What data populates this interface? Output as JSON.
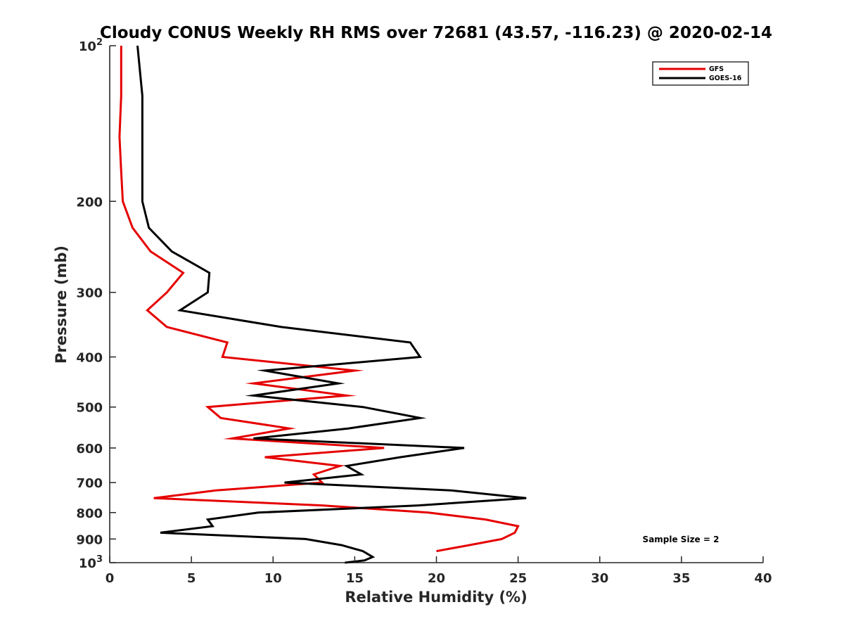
{
  "chart_data": {
    "type": "line",
    "title": "Cloudy CONUS Weekly RH RMS over 72681 (43.57, -116.23) @ 2020-02-14",
    "xlabel": "Relative Humidity (%)",
    "ylabel": "Pressure (mb)",
    "xlim": [
      0,
      40
    ],
    "ylim": [
      100,
      1000
    ],
    "y_scale": "log",
    "y_reversed": true,
    "grid": false,
    "legend_placement": "top-right",
    "x_ticks": [
      "0",
      "5",
      "10",
      "15",
      "20",
      "25",
      "30",
      "35",
      "40"
    ],
    "y_ticks": [
      {
        "value": 100,
        "base": "10",
        "exp": "2"
      },
      {
        "value": 200,
        "label": "200"
      },
      {
        "value": 300,
        "label": "300"
      },
      {
        "value": 400,
        "label": "400"
      },
      {
        "value": 500,
        "label": "500"
      },
      {
        "value": 600,
        "label": "600"
      },
      {
        "value": 700,
        "label": "700"
      },
      {
        "value": 800,
        "label": "800"
      },
      {
        "value": 900,
        "label": "900"
      },
      {
        "value": 1000,
        "base": "10",
        "exp": "3"
      }
    ],
    "annotation": "Sample Size = 2",
    "series": [
      {
        "name": "GFS",
        "color": "#e50000",
        "points": [
          {
            "x": 0.7,
            "y": 100
          },
          {
            "x": 0.7,
            "y": 125
          },
          {
            "x": 0.6,
            "y": 150
          },
          {
            "x": 0.7,
            "y": 175
          },
          {
            "x": 0.8,
            "y": 200
          },
          {
            "x": 1.4,
            "y": 225
          },
          {
            "x": 2.5,
            "y": 250
          },
          {
            "x": 4.5,
            "y": 275
          },
          {
            "x": 3.5,
            "y": 300
          },
          {
            "x": 2.3,
            "y": 325
          },
          {
            "x": 3.5,
            "y": 350
          },
          {
            "x": 7.2,
            "y": 375
          },
          {
            "x": 6.9,
            "y": 400
          },
          {
            "x": 15,
            "y": 425
          },
          {
            "x": 8.8,
            "y": 450
          },
          {
            "x": 14.5,
            "y": 475
          },
          {
            "x": 6,
            "y": 500
          },
          {
            "x": 6.8,
            "y": 525
          },
          {
            "x": 11,
            "y": 550
          },
          {
            "x": 7.5,
            "y": 575
          },
          {
            "x": 16.8,
            "y": 600
          },
          {
            "x": 9.5,
            "y": 625
          },
          {
            "x": 14.1,
            "y": 650
          },
          {
            "x": 12.5,
            "y": 675
          },
          {
            "x": 13,
            "y": 700
          },
          {
            "x": 6.5,
            "y": 725
          },
          {
            "x": 2.7,
            "y": 750
          },
          {
            "x": 13,
            "y": 775
          },
          {
            "x": 19.5,
            "y": 800
          },
          {
            "x": 23,
            "y": 825
          },
          {
            "x": 25,
            "y": 850
          },
          {
            "x": 24.8,
            "y": 875
          },
          {
            "x": 24,
            "y": 900
          },
          {
            "x": 22,
            "y": 925
          },
          {
            "x": 20,
            "y": 950
          }
        ]
      },
      {
        "name": "GOES-16",
        "color": "#000000",
        "points": [
          {
            "x": 1.7,
            "y": 100
          },
          {
            "x": 2,
            "y": 125
          },
          {
            "x": 2,
            "y": 150
          },
          {
            "x": 2,
            "y": 175
          },
          {
            "x": 2,
            "y": 200
          },
          {
            "x": 2.4,
            "y": 225
          },
          {
            "x": 3.8,
            "y": 250
          },
          {
            "x": 6.1,
            "y": 275
          },
          {
            "x": 6,
            "y": 300
          },
          {
            "x": 4.3,
            "y": 325
          },
          {
            "x": 10.5,
            "y": 350
          },
          {
            "x": 18.4,
            "y": 375
          },
          {
            "x": 19,
            "y": 400
          },
          {
            "x": 9.5,
            "y": 425
          },
          {
            "x": 14,
            "y": 450
          },
          {
            "x": 8.8,
            "y": 475
          },
          {
            "x": 15.5,
            "y": 500
          },
          {
            "x": 19,
            "y": 525
          },
          {
            "x": 14.6,
            "y": 550
          },
          {
            "x": 8.8,
            "y": 575
          },
          {
            "x": 21.7,
            "y": 600
          },
          {
            "x": 17.8,
            "y": 625
          },
          {
            "x": 14.5,
            "y": 650
          },
          {
            "x": 15.4,
            "y": 675
          },
          {
            "x": 10.7,
            "y": 700
          },
          {
            "x": 20.9,
            "y": 725
          },
          {
            "x": 25.5,
            "y": 750
          },
          {
            "x": 18.9,
            "y": 775
          },
          {
            "x": 9.1,
            "y": 800
          },
          {
            "x": 6,
            "y": 825
          },
          {
            "x": 6.3,
            "y": 850
          },
          {
            "x": 3.1,
            "y": 875
          },
          {
            "x": 12,
            "y": 900
          },
          {
            "x": 14.2,
            "y": 925
          },
          {
            "x": 15.5,
            "y": 950
          },
          {
            "x": 16.1,
            "y": 975
          },
          {
            "x": 15.6,
            "y": 990
          },
          {
            "x": 14.4,
            "y": 1000
          }
        ]
      }
    ]
  }
}
